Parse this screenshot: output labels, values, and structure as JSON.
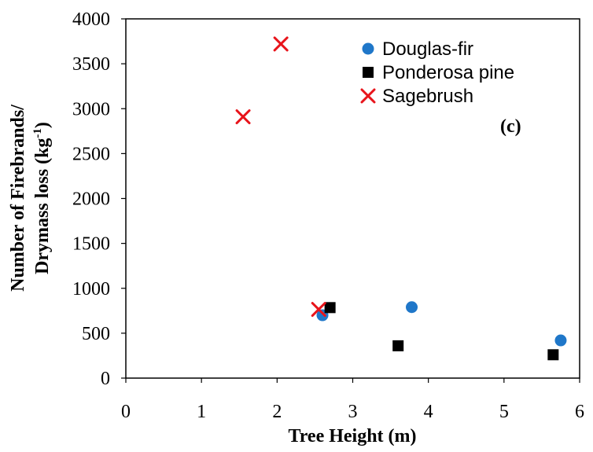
{
  "chart_data": {
    "type": "scatter",
    "title": "",
    "xlabel": "Tree Height (m)",
    "ylabel_line1": "Number of Firebrands/",
    "ylabel_line2": "Drymass loss (kg",
    "ylabel_sup": "-1",
    "ylabel_close": ")",
    "xlim": [
      0,
      6
    ],
    "ylim": [
      0,
      4000
    ],
    "xticks": [
      0,
      1,
      2,
      3,
      4,
      5,
      6
    ],
    "yticks": [
      0,
      500,
      1000,
      1500,
      2000,
      2500,
      3000,
      3500,
      4000
    ],
    "grid": false,
    "legend_position": "top-right",
    "annotation": "(c)",
    "series": [
      {
        "name": "Douglas-fir",
        "marker": "circle",
        "color": "#1F77C9",
        "points": [
          [
            2.6,
            700
          ],
          [
            3.78,
            790
          ],
          [
            5.75,
            420
          ]
        ]
      },
      {
        "name": "Ponderosa pine",
        "marker": "square",
        "color": "#000000",
        "points": [
          [
            2.7,
            785
          ],
          [
            3.6,
            360
          ],
          [
            5.65,
            260
          ]
        ]
      },
      {
        "name": "Sagebrush",
        "marker": "x",
        "color": "#E8141B",
        "points": [
          [
            1.55,
            2910
          ],
          [
            2.05,
            3720
          ],
          [
            2.55,
            765
          ]
        ]
      }
    ]
  }
}
